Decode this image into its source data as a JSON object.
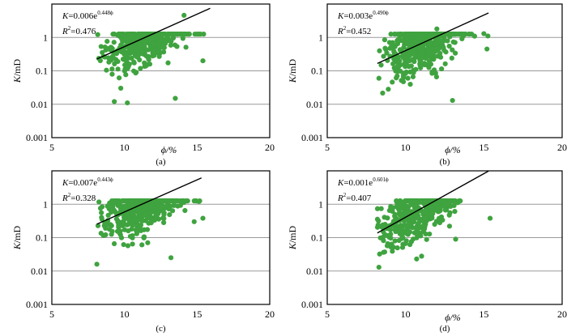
{
  "chart_data": [
    {
      "type": "scatter",
      "panel_label": "(a)",
      "xlabel": "ϕ/%",
      "ylabel": "K/mD",
      "xlim": [
        5,
        20
      ],
      "ylim": [
        0.001,
        10
      ],
      "y_scale": "log",
      "xticks": [
        "5",
        "10",
        "15",
        "20"
      ],
      "yticks": [
        "0.001",
        "0.01",
        "0.1",
        "1"
      ],
      "grid": "horizontal",
      "equation": {
        "prefix": "K=0.006e",
        "exponent": "0.448ϕ"
      },
      "r_squared": {
        "prefix": "R",
        "sup": "2",
        "value": "=0.476"
      },
      "fit": {
        "coef": 0.006,
        "exp": 0.448,
        "x_range": [
          8.1,
          15.9
        ]
      },
      "cloud": {
        "x_range": [
          8.1,
          15.9
        ],
        "x_center": 11.5,
        "spread": 0.42,
        "n": 520,
        "seed": 11
      },
      "outliers": [
        [
          14.1,
          4.6
        ],
        [
          9.3,
          0.012
        ],
        [
          10.2,
          0.011
        ],
        [
          15.4,
          0.2
        ],
        [
          13.5,
          0.015
        ]
      ],
      "point_color": "#3fa33f"
    },
    {
      "type": "scatter",
      "panel_label": "(b)",
      "xlabel": "ϕ/%",
      "ylabel": "K/mD",
      "xlim": [
        5,
        20
      ],
      "ylim": [
        0.001,
        10
      ],
      "y_scale": "log",
      "xticks": [
        "5",
        "10",
        "15",
        "20"
      ],
      "yticks": [
        "0.001",
        "0.01",
        "0.1",
        "1"
      ],
      "grid": "horizontal",
      "equation": {
        "prefix": "K=0.003e",
        "exponent": "0.490ϕ"
      },
      "r_squared": {
        "prefix": "R",
        "sup": "2",
        "value": "=0.452"
      },
      "fit": {
        "coef": 0.003,
        "exp": 0.49,
        "x_range": [
          8.2,
          15.3
        ]
      },
      "cloud": {
        "x_range": [
          8.2,
          15.3
        ],
        "x_center": 11.0,
        "spread": 0.42,
        "n": 500,
        "seed": 23
      },
      "outliers": [
        [
          12.0,
          1.8
        ],
        [
          15.0,
          1.3
        ],
        [
          13.0,
          0.013
        ],
        [
          8.3,
          0.06
        ],
        [
          15.2,
          0.45
        ]
      ],
      "point_color": "#3fa33f"
    },
    {
      "type": "scatter",
      "panel_label": "(c)",
      "xlabel": "",
      "ylabel": "K/mD",
      "xlim": [
        5,
        20
      ],
      "ylim": [
        0.001,
        10
      ],
      "y_scale": "log",
      "xticks": [
        "5",
        "10",
        "15",
        "20"
      ],
      "yticks": [
        "0.001",
        "0.01",
        "0.1",
        "1"
      ],
      "grid": "horizontal",
      "equation": {
        "prefix": "K=0.007e",
        "exponent": "0.443ϕ"
      },
      "r_squared": {
        "prefix": "R",
        "sup": "2",
        "value": "=0.328"
      },
      "fit": {
        "coef": 0.007,
        "exp": 0.443,
        "x_range": [
          8.1,
          15.3
        ]
      },
      "cloud": {
        "x_range": [
          8.0,
          15.5
        ],
        "x_center": 11.3,
        "spread": 0.42,
        "n": 520,
        "seed": 37
      },
      "outliers": [
        [
          15.4,
          0.38
        ],
        [
          8.1,
          0.016
        ],
        [
          13.2,
          0.025
        ],
        [
          14.8,
          0.3
        ]
      ],
      "point_color": "#3fa33f"
    },
    {
      "type": "scatter",
      "panel_label": "(d)",
      "xlabel": "ϕ/%",
      "ylabel": "K/mD",
      "xlim": [
        5,
        20
      ],
      "ylim": [
        0.001,
        10
      ],
      "y_scale": "log",
      "xticks": [
        "5",
        "10",
        "15",
        "20"
      ],
      "yticks": [
        "0.001",
        "0.01",
        "0.1",
        "1"
      ],
      "grid": "horizontal",
      "equation": {
        "prefix": "K=0.001e",
        "exponent": "0.601ϕ"
      },
      "r_squared": {
        "prefix": "R",
        "sup": "2",
        "value": "=0.407"
      },
      "fit": {
        "coef": 0.001,
        "exp": 0.601,
        "x_range": [
          8.2,
          15.3
        ]
      },
      "cloud": {
        "x_range": [
          8.2,
          13.5
        ],
        "x_center": 10.9,
        "spread": 0.42,
        "n": 520,
        "seed": 53
      },
      "outliers": [
        [
          15.4,
          0.38
        ],
        [
          8.3,
          0.013
        ],
        [
          13.2,
          0.09
        ]
      ],
      "point_color": "#3fa33f"
    }
  ]
}
